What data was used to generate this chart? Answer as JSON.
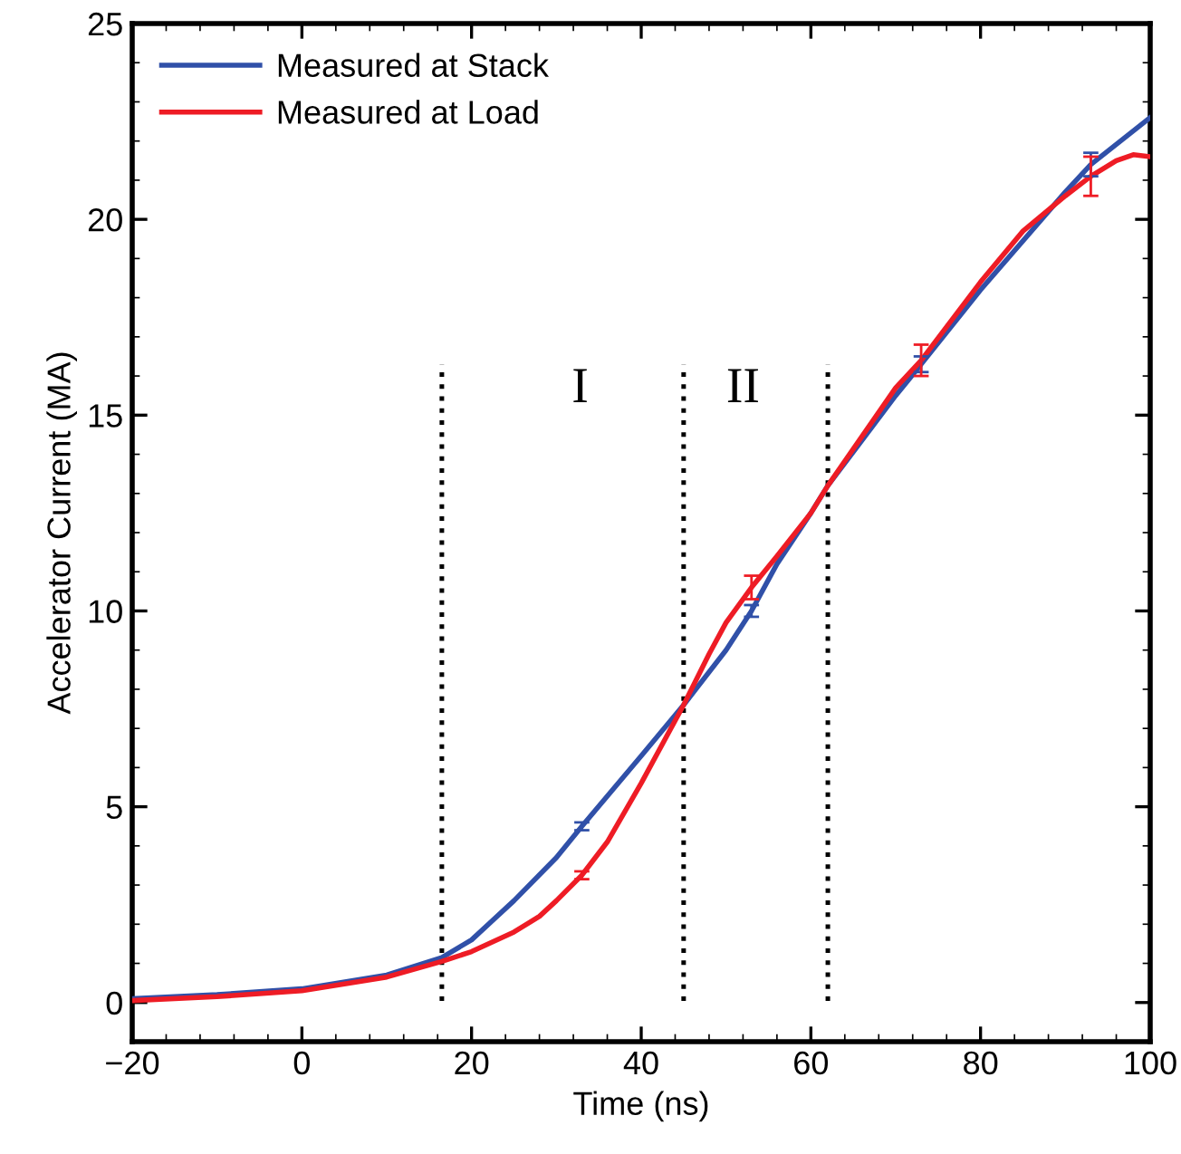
{
  "chart_data": {
    "type": "line",
    "xlabel": "Time (ns)",
    "ylabel": "Accelerator Current (MA)",
    "xlim": [
      -20,
      100
    ],
    "ylim": [
      -1,
      25
    ],
    "xticks": [
      -20,
      0,
      20,
      40,
      60,
      80,
      100
    ],
    "yticks": [
      0,
      5,
      10,
      15,
      20,
      25
    ],
    "legend": "top left",
    "grid": false,
    "marker": "none",
    "line_style": "solid",
    "series": [
      {
        "name": "Measured at Stack",
        "color": "#3050a8",
        "x": [
          -20,
          -10,
          0,
          10,
          16.5,
          20,
          25,
          30,
          33,
          40,
          45,
          50,
          53,
          56,
          60,
          62,
          70,
          73,
          80,
          90,
          93,
          100
        ],
        "values": [
          0.1,
          0.2,
          0.35,
          0.7,
          1.15,
          1.6,
          2.6,
          3.7,
          4.5,
          6.3,
          7.6,
          9.0,
          10.0,
          11.2,
          12.5,
          13.2,
          15.5,
          16.3,
          18.2,
          20.7,
          21.4,
          22.6
        ],
        "errors": [
          null,
          null,
          null,
          null,
          null,
          null,
          null,
          null,
          0.1,
          null,
          null,
          null,
          0.15,
          null,
          null,
          null,
          null,
          0.2,
          null,
          null,
          0.3,
          null
        ]
      },
      {
        "name": "Measured at Load",
        "color": "#ee1c25",
        "x": [
          -20,
          -10,
          0,
          10,
          16.5,
          20,
          25,
          28,
          30,
          33,
          36,
          40,
          45,
          48,
          50,
          53,
          56,
          60,
          62,
          70,
          73,
          80,
          85,
          90,
          93,
          96,
          98,
          100
        ],
        "values": [
          0.05,
          0.15,
          0.3,
          0.65,
          1.05,
          1.3,
          1.8,
          2.2,
          2.6,
          3.25,
          4.1,
          5.6,
          7.6,
          8.9,
          9.7,
          10.6,
          11.4,
          12.5,
          13.2,
          15.7,
          16.4,
          18.4,
          19.7,
          20.6,
          21.1,
          21.5,
          21.65,
          21.6
        ],
        "errors": [
          null,
          null,
          null,
          null,
          null,
          null,
          null,
          null,
          null,
          0.1,
          null,
          null,
          null,
          null,
          null,
          0.3,
          null,
          null,
          null,
          null,
          0.4,
          null,
          null,
          null,
          0.5,
          null,
          null,
          null
        ]
      }
    ],
    "ref_lines": [
      {
        "axis": "x",
        "value": 16.5,
        "color": "#000000",
        "line_style": "dotted"
      },
      {
        "axis": "x",
        "value": 45,
        "color": "#000000",
        "line_style": "dotted"
      },
      {
        "axis": "x",
        "value": 62,
        "color": "#000000",
        "line_style": "dotted"
      }
    ],
    "annotations": [
      "I",
      "II"
    ]
  }
}
